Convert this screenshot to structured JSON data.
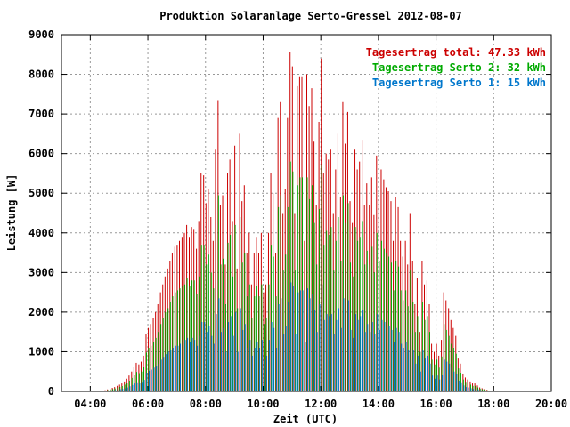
{
  "chart_data": {
    "type": "bar",
    "title": "Produktion Solaranlage Serto-Gressel 2012-08-07",
    "xlabel": "Zeit (UTC)",
    "ylabel": "Leistung [W]",
    "xlim": [
      3.0,
      20.0
    ],
    "ylim": [
      0,
      9000
    ],
    "x_ticks": [
      "04:00",
      "06:00",
      "08:00",
      "10:00",
      "12:00",
      "14:00",
      "16:00",
      "18:00",
      "20:00"
    ],
    "y_ticks": [
      "0",
      "1000",
      "2000",
      "3000",
      "4000",
      "5000",
      "6000",
      "7000",
      "8000",
      "9000"
    ],
    "grid": true,
    "legend_position": "top-right",
    "sample_interval_minutes": 5,
    "legend": [
      {
        "label": "Tagesertrag total: 47.33 kWh",
        "color": "#cc0000"
      },
      {
        "label": "Tagesertrag Serto 2: 32 kWh",
        "color": "#00aa00"
      },
      {
        "label": "Tagesertrag Serto 1: 15 kWh",
        "color": "#0077cc"
      }
    ],
    "x_hours": [
      4.5,
      4.58,
      4.67,
      4.75,
      4.83,
      4.92,
      5,
      5.08,
      5.17,
      5.25,
      5.33,
      5.42,
      5.5,
      5.58,
      5.67,
      5.75,
      5.83,
      5.92,
      6,
      6.08,
      6.17,
      6.25,
      6.33,
      6.42,
      6.5,
      6.58,
      6.67,
      6.75,
      6.83,
      6.92,
      7,
      7.08,
      7.17,
      7.25,
      7.33,
      7.42,
      7.5,
      7.58,
      7.67,
      7.75,
      7.83,
      7.92,
      8,
      8.08,
      8.17,
      8.25,
      8.33,
      8.42,
      8.5,
      8.58,
      8.67,
      8.75,
      8.83,
      8.92,
      9,
      9.08,
      9.17,
      9.25,
      9.33,
      9.42,
      9.5,
      9.58,
      9.67,
      9.75,
      9.83,
      9.92,
      10,
      10.08,
      10.17,
      10.25,
      10.33,
      10.42,
      10.5,
      10.58,
      10.67,
      10.75,
      10.83,
      10.92,
      11,
      11.08,
      11.17,
      11.25,
      11.33,
      11.42,
      11.5,
      11.58,
      11.67,
      11.75,
      11.83,
      11.92,
      12,
      12.08,
      12.17,
      12.25,
      12.33,
      12.42,
      12.5,
      12.58,
      12.67,
      12.75,
      12.83,
      12.92,
      13,
      13.08,
      13.17,
      13.25,
      13.33,
      13.42,
      13.5,
      13.58,
      13.67,
      13.75,
      13.83,
      13.92,
      14,
      14.08,
      14.17,
      14.25,
      14.33,
      14.42,
      14.5,
      14.58,
      14.67,
      14.75,
      14.83,
      14.92,
      15,
      15.08,
      15.17,
      15.25,
      15.33,
      15.42,
      15.5,
      15.58,
      15.67,
      15.75,
      15.83,
      15.92,
      16,
      16.08,
      16.17,
      16.25,
      16.33,
      16.42,
      16.5,
      16.58,
      16.67,
      16.75,
      16.83,
      16.92,
      17,
      17.08,
      17.17,
      17.25,
      17.33,
      17.42,
      17.5,
      17.58,
      17.67,
      17.75,
      17.83,
      17.92,
      18,
      18.08,
      18.17,
      18.25,
      18.33,
      18.42,
      18.5,
      18.58
    ],
    "series": [
      {
        "name": "Tagesertrag total: 47.33 kWh",
        "color": "#cc0000",
        "values": [
          30,
          50,
          70,
          90,
          110,
          140,
          170,
          200,
          250,
          320,
          400,
          500,
          620,
          720,
          680,
          750,
          900,
          1450,
          1600,
          1700,
          1850,
          2000,
          2200,
          2500,
          2700,
          2900,
          3100,
          3300,
          3500,
          3650,
          3700,
          3800,
          3900,
          4000,
          4200,
          3900,
          4150,
          4100,
          3600,
          4300,
          5500,
          5450,
          4750,
          5100,
          4400,
          3800,
          6100,
          7350,
          4700,
          4950,
          3200,
          5500,
          5850,
          4300,
          6200,
          3100,
          6500,
          4800,
          5200,
          3500,
          4000,
          2700,
          3500,
          3900,
          3500,
          4000,
          2500,
          2700,
          4000,
          5500,
          5000,
          3500,
          6900,
          7300,
          4500,
          5100,
          6900,
          8550,
          8200,
          4500,
          7700,
          7950,
          7950,
          3800,
          8000,
          7200,
          7650,
          6300,
          4700,
          6800,
          8400,
          5500,
          6000,
          5850,
          6100,
          4500,
          5600,
          6500,
          4900,
          7300,
          6250,
          7050,
          4800,
          4250,
          6100,
          5600,
          5800,
          6350,
          4700,
          5250,
          4700,
          5400,
          4450,
          5950,
          4850,
          5600,
          5350,
          5150,
          5050,
          4800,
          3800,
          4900,
          4650,
          3800,
          3400,
          3800,
          3200,
          4500,
          3300,
          2200,
          2850,
          1500,
          3300,
          2700,
          2800,
          2200,
          1200,
          1000,
          1200,
          900,
          1300,
          2500,
          2300,
          2100,
          1800,
          1600,
          1400,
          850,
          700,
          450,
          350,
          300,
          250,
          200,
          200,
          150,
          100,
          80,
          60,
          40,
          20,
          10
        ]
      },
      {
        "name": "Tagesertrag Serto 2: 32 kWh",
        "color": "#00aa00",
        "values": [
          20,
          35,
          50,
          60,
          75,
          95,
          115,
          135,
          170,
          220,
          270,
          340,
          420,
          490,
          460,
          500,
          610,
          980,
          1100,
          1150,
          1250,
          1350,
          1500,
          1700,
          1850,
          2000,
          2100,
          2250,
          2400,
          2500,
          2550,
          2600,
          2650,
          2700,
          2850,
          2650,
          2800,
          2800,
          2450,
          2900,
          3700,
          3700,
          3200,
          3450,
          3000,
          2600,
          4150,
          4950,
          3200,
          3350,
          2200,
          3750,
          3950,
          2900,
          4200,
          2100,
          4400,
          3250,
          3500,
          2400,
          2700,
          1850,
          2400,
          2650,
          2400,
          2700,
          1700,
          1850,
          2700,
          3700,
          3400,
          2400,
          4650,
          4950,
          3050,
          3450,
          4650,
          5800,
          5550,
          3050,
          5200,
          5400,
          5400,
          2550,
          5400,
          4850,
          5200,
          4250,
          3200,
          4600,
          5700,
          3700,
          4050,
          3950,
          4150,
          3050,
          3800,
          4400,
          3300,
          4950,
          4250,
          4750,
          3250,
          2900,
          4150,
          3800,
          3900,
          4300,
          3200,
          3550,
          3200,
          3650,
          3000,
          4000,
          3300,
          3800,
          3600,
          3500,
          3400,
          3250,
          2550,
          3300,
          3150,
          2550,
          2300,
          2550,
          2150,
          3050,
          2250,
          1500,
          1900,
          1000,
          2250,
          1800,
          1900,
          1500,
          800,
          680,
          800,
          600,
          880,
          1700,
          1550,
          1400,
          1200,
          1100,
          950,
          580,
          470,
          300,
          240,
          200,
          170,
          140,
          140,
          100,
          70,
          55,
          40,
          27,
          14,
          7
        ]
      },
      {
        "name": "Tagesertrag Serto 1: 15 kWh",
        "color": "#0077cc",
        "values": [
          10,
          15,
          20,
          30,
          35,
          45,
          55,
          65,
          80,
          100,
          130,
          160,
          200,
          230,
          220,
          240,
          290,
          470,
          520,
          550,
          600,
          650,
          700,
          800,
          870,
          940,
          1000,
          1050,
          1100,
          1150,
          1150,
          1200,
          1250,
          1300,
          1350,
          1250,
          1350,
          1300,
          1150,
          1400,
          1750,
          1750,
          1500,
          1650,
          1400,
          1200,
          1950,
          2350,
          1500,
          1600,
          1000,
          1750,
          1900,
          1400,
          2000,
          1000,
          2100,
          1550,
          1700,
          1100,
          1300,
          900,
          1100,
          1250,
          1100,
          1300,
          800,
          900,
          1300,
          1750,
          1600,
          1100,
          2200,
          2350,
          1450,
          1650,
          2250,
          2750,
          2650,
          1450,
          2500,
          2550,
          2550,
          1250,
          2600,
          2350,
          2450,
          2050,
          1500,
          2200,
          2700,
          1800,
          1950,
          1900,
          1950,
          1450,
          1800,
          2100,
          1600,
          2350,
          2000,
          2300,
          1550,
          1350,
          1950,
          1800,
          1900,
          2050,
          1500,
          1700,
          1500,
          1750,
          1450,
          1950,
          1550,
          1800,
          1750,
          1650,
          1650,
          1550,
          1250,
          1600,
          1500,
          1200,
          1100,
          1250,
          1050,
          1450,
          1050,
          700,
          900,
          500,
          1050,
          850,
          900,
          700,
          400,
          320,
          400,
          300,
          420,
          800,
          750,
          700,
          600,
          500,
          450,
          270,
          230,
          150,
          110,
          100,
          80,
          60,
          60,
          50,
          30,
          25,
          20,
          13,
          6,
          3
        ]
      }
    ]
  }
}
